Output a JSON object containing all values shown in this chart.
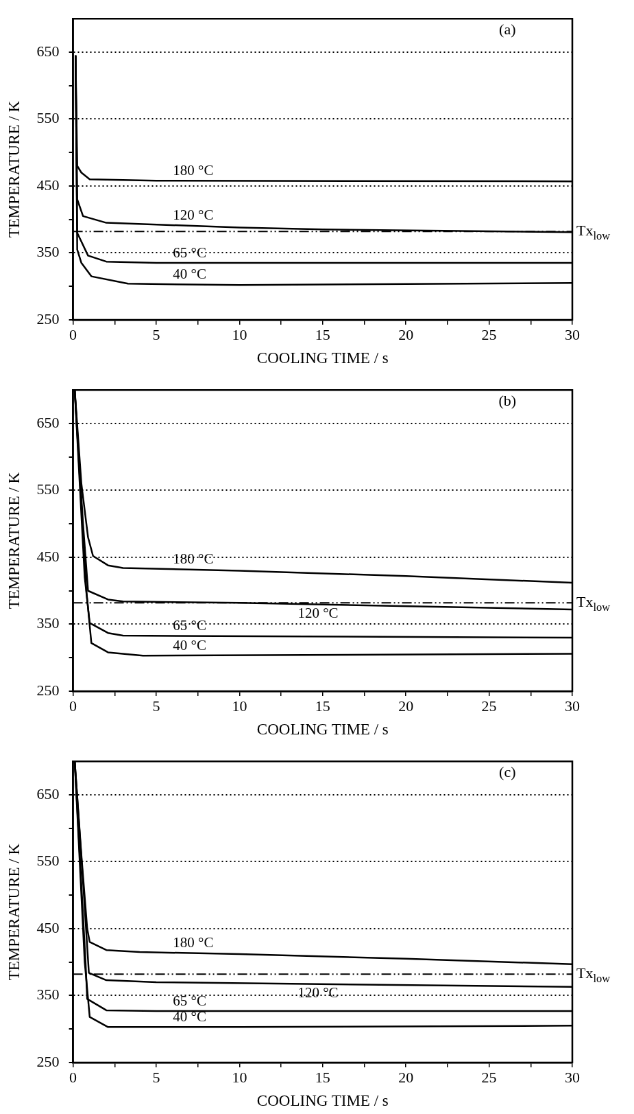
{
  "chart_data": [
    {
      "type": "line",
      "xlabel": "COOLING TIME / s",
      "ylabel": "TEMPERATURE / K",
      "annotations": [
        "(a)"
      ],
      "xlim": [
        0,
        30
      ],
      "ylim": [
        250,
        700
      ],
      "xticks": [
        0,
        {
          "value": 2.5,
          "label": null
        },
        5,
        {
          "value": 7.5,
          "label": null
        },
        10,
        {
          "value": 12.5,
          "label": null
        },
        15,
        {
          "value": 17.5,
          "label": null
        },
        20,
        {
          "value": 22.5,
          "label": null
        },
        25,
        {
          "value": 27.5,
          "label": null
        },
        30
      ],
      "yticks": [
        250,
        {
          "value": 300,
          "label": null
        },
        350,
        {
          "value": 400,
          "label": null
        },
        450,
        {
          "value": 500,
          "label": null
        },
        550,
        {
          "value": 600,
          "label": null
        },
        650
      ],
      "grid": "y",
      "legend": false,
      "marker": "none",
      "line_style": "solid",
      "ref_lines": [
        {
          "axis": "y",
          "value": 382,
          "label": "Tx$_{low}$",
          "line_style": "dashed",
          "color": "#000000"
        }
      ],
      "series": [
        {
          "name": "180 °C",
          "color": "#000000",
          "x": [
            0.15,
            0.25,
            0.5,
            1,
            5,
            30
          ],
          "values": [
            645,
            480,
            470,
            460,
            458,
            457
          ]
        },
        {
          "name": "120 °C",
          "color": "#000000",
          "x": [
            0.15,
            0.25,
            0.6,
            2,
            10,
            15,
            30
          ],
          "values": [
            645,
            430,
            405,
            395,
            388,
            385,
            381
          ]
        },
        {
          "name": "65 °C",
          "color": "#000000",
          "x": [
            0.15,
            0.25,
            0.9,
            2,
            5,
            30
          ],
          "values": [
            645,
            380,
            346,
            337,
            335,
            335
          ]
        },
        {
          "name": "40 °C",
          "color": "#000000",
          "x": [
            0.15,
            0.25,
            0.5,
            1.1,
            3.3,
            10,
            30
          ],
          "values": [
            645,
            355,
            335,
            315,
            304,
            302,
            305
          ]
        }
      ]
    },
    {
      "type": "line",
      "xlabel": "COOLING TIME / s",
      "ylabel": "TEMPERATURE / K",
      "annotations": [
        "(b)"
      ],
      "xlim": [
        0,
        30
      ],
      "ylim": [
        250,
        700
      ],
      "xticks": [
        0,
        {
          "value": 2.5,
          "label": null
        },
        5,
        {
          "value": 7.5,
          "label": null
        },
        10,
        {
          "value": 12.5,
          "label": null
        },
        15,
        {
          "value": 17.5,
          "label": null
        },
        20,
        {
          "value": 22.5,
          "label": null
        },
        25,
        {
          "value": 27.5,
          "label": null
        },
        30
      ],
      "yticks": [
        250,
        {
          "value": 300,
          "label": null
        },
        350,
        {
          "value": 400,
          "label": null
        },
        450,
        {
          "value": 500,
          "label": null
        },
        550,
        {
          "value": 600,
          "label": null
        },
        650
      ],
      "grid": "y",
      "legend": false,
      "marker": "none",
      "line_style": "solid",
      "ref_lines": [
        {
          "axis": "y",
          "value": 382,
          "label": "Tx$_{low}$",
          "line_style": "dashed",
          "color": "#000000"
        }
      ],
      "series": [
        {
          "name": "180 °C",
          "color": "#000000",
          "x": [
            0.1,
            0.5,
            0.9,
            1.2,
            2.1,
            3,
            10,
            20,
            30
          ],
          "values": [
            700,
            560,
            480,
            452,
            438,
            434,
            430,
            422,
            412
          ]
        },
        {
          "name": "120 °C",
          "color": "#000000",
          "x": [
            0.1,
            0.6,
            0.9,
            2.1,
            3,
            10,
            30
          ],
          "values": [
            700,
            500,
            400,
            387,
            384,
            382,
            372
          ]
        },
        {
          "name": "65 °C",
          "color": "#000000",
          "x": [
            0.1,
            0.7,
            1,
            2.1,
            3,
            30
          ],
          "values": [
            700,
            420,
            352,
            337,
            333,
            330
          ]
        },
        {
          "name": "40 °C",
          "color": "#000000",
          "x": [
            0.1,
            0.8,
            1.1,
            2.1,
            4.2,
            30
          ],
          "values": [
            700,
            400,
            322,
            308,
            303,
            306
          ]
        }
      ]
    },
    {
      "type": "line",
      "xlabel": "COOLING TIME / s",
      "ylabel": "TEMPERATURE / K",
      "annotations": [
        "(c)"
      ],
      "xlim": [
        0,
        30
      ],
      "ylim": [
        250,
        700
      ],
      "xticks": [
        0,
        {
          "value": 2.5,
          "label": null
        },
        5,
        {
          "value": 7.5,
          "label": null
        },
        10,
        {
          "value": 12.5,
          "label": null
        },
        15,
        {
          "value": 17.5,
          "label": null
        },
        20,
        {
          "value": 22.5,
          "label": null
        },
        25,
        {
          "value": 27.5,
          "label": null
        },
        30
      ],
      "yticks": [
        250,
        {
          "value": 300,
          "label": null
        },
        350,
        {
          "value": 400,
          "label": null
        },
        450,
        {
          "value": 500,
          "label": null
        },
        550,
        {
          "value": 600,
          "label": null
        },
        650
      ],
      "grid": "y",
      "legend": false,
      "marker": "none",
      "line_style": "solid",
      "ref_lines": [
        {
          "axis": "y",
          "value": 382,
          "label": "Tx$_{low}$",
          "line_style": "dashed",
          "color": "#000000"
        }
      ],
      "series": [
        {
          "name": "180 °C",
          "color": "#000000",
          "x": [
            0.1,
            0.5,
            0.85,
            1,
            2,
            4,
            10,
            20,
            30
          ],
          "values": [
            700,
            560,
            450,
            430,
            418,
            415,
            412,
            405,
            397
          ]
        },
        {
          "name": "120 °C",
          "color": "#000000",
          "x": [
            0.1,
            0.6,
            0.95,
            2,
            5,
            30
          ],
          "values": [
            700,
            520,
            384,
            373,
            370,
            363
          ]
        },
        {
          "name": "65 °C",
          "color": "#000000",
          "x": [
            0.1,
            0.75,
            0.85,
            2,
            5,
            30
          ],
          "values": [
            700,
            400,
            345,
            328,
            327,
            327
          ]
        },
        {
          "name": "40 °C",
          "color": "#000000",
          "x": [
            0.1,
            0.7,
            1,
            2.1,
            10,
            30
          ],
          "values": [
            700,
            400,
            318,
            303,
            303,
            305
          ]
        }
      ]
    }
  ]
}
